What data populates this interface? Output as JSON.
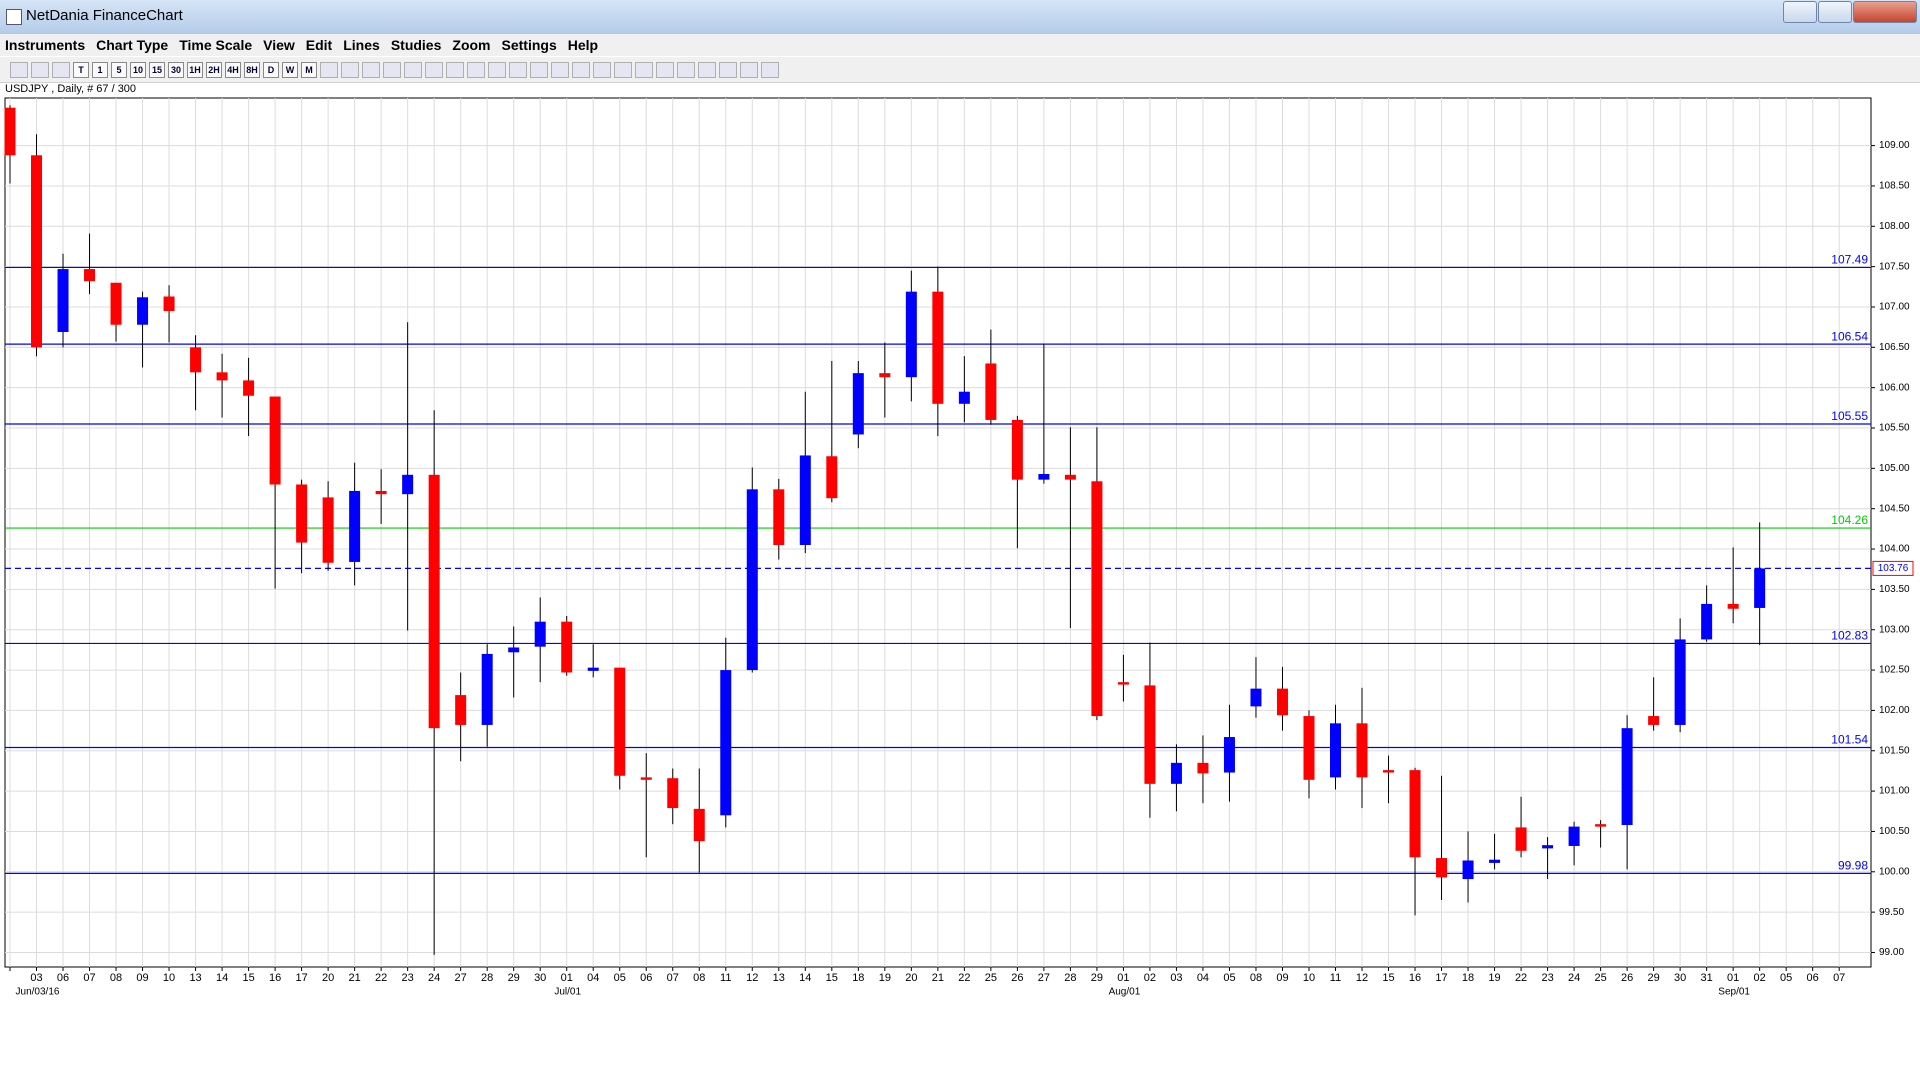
{
  "window": {
    "title": "NetDania FinanceChart",
    "menu": [
      "Instruments",
      "Chart Type",
      "Time Scale",
      "View",
      "Edit",
      "Lines",
      "Studies",
      "Zoom",
      "Settings",
      "Help"
    ]
  },
  "toolbar": {
    "buttons": [
      "T",
      "1",
      "5",
      "10",
      "15",
      "30",
      "1H",
      "2H",
      "4H",
      "8H",
      "D",
      "W",
      "M"
    ]
  },
  "chart_data": {
    "type": "candlestick",
    "title": "USDJPY , Daily, # 67 / 300",
    "up_color": "#0000ff",
    "down_color": "#ff0000",
    "grid": true,
    "categories": [
      null,
      "03",
      "06",
      "07",
      "08",
      "09",
      "10",
      "13",
      "14",
      "15",
      "16",
      "17",
      "20",
      "21",
      "22",
      "23",
      "24",
      "27",
      "28",
      "29",
      "30",
      "01",
      "04",
      "05",
      "06",
      "07",
      "08",
      "11",
      "12",
      "13",
      "14",
      "15",
      "18",
      "19",
      "20",
      "21",
      "22",
      "25",
      "26",
      "27",
      "28",
      "29",
      "01",
      "02",
      "03",
      "04",
      "05",
      "08",
      "09",
      "10",
      "11",
      "12",
      "15",
      "16",
      "17",
      "18",
      "19",
      "22",
      "23",
      "24",
      "25",
      "26",
      "29",
      "30",
      "31",
      "01",
      "02",
      "05",
      "06",
      "07"
    ],
    "period_labels": [
      null,
      "Jun/03/16",
      null,
      null,
      null,
      null,
      null,
      null,
      null,
      null,
      null,
      null,
      null,
      null,
      null,
      null,
      null,
      null,
      null,
      null,
      null,
      "Jul/01",
      null,
      null,
      null,
      null,
      null,
      null,
      null,
      null,
      null,
      null,
      null,
      null,
      null,
      null,
      null,
      null,
      null,
      null,
      null,
      null,
      "Aug/01",
      null,
      null,
      null,
      null,
      null,
      null,
      null,
      null,
      null,
      null,
      null,
      null,
      null,
      null,
      null,
      null,
      null,
      null,
      null,
      null,
      null,
      null,
      "Sep/01",
      null,
      null,
      null,
      null
    ],
    "open": [
      109.47,
      108.88,
      106.69,
      107.47,
      107.3,
      106.78,
      107.13,
      106.5,
      106.19,
      106.09,
      105.89,
      104.8,
      104.64,
      103.84,
      104.72,
      104.68,
      104.92,
      102.19,
      101.82,
      102.72,
      102.79,
      103.1,
      102.49,
      102.53,
      101.17,
      101.16,
      100.78,
      100.7,
      102.5,
      104.74,
      104.05,
      105.15,
      105.42,
      106.18,
      106.13,
      107.19,
      105.8,
      106.3,
      105.6,
      104.86,
      104.92,
      104.84,
      102.35,
      102.31,
      101.09,
      101.35,
      101.23,
      102.05,
      102.27,
      101.93,
      101.17,
      101.84,
      101.26,
      101.26,
      100.17,
      99.91,
      100.11,
      100.55,
      100.29,
      100.32,
      100.59,
      100.58,
      101.93,
      101.82,
      102.88,
      103.32,
      103.27,
      null,
      null,
      null
    ],
    "high": [
      109.5,
      109.14,
      107.66,
      107.91,
      107.3,
      107.19,
      107.27,
      106.65,
      106.42,
      106.37,
      105.89,
      104.86,
      104.84,
      105.07,
      104.99,
      106.81,
      105.72,
      102.47,
      102.82,
      103.04,
      103.4,
      103.17,
      102.82,
      102.53,
      101.47,
      101.28,
      101.28,
      102.9,
      105.01,
      104.87,
      105.95,
      106.33,
      106.33,
      106.56,
      107.45,
      107.5,
      106.39,
      106.72,
      105.65,
      106.54,
      105.51,
      105.51,
      102.69,
      102.84,
      101.58,
      101.69,
      102.07,
      102.66,
      102.54,
      102.0,
      102.07,
      102.28,
      101.44,
      101.29,
      101.19,
      100.5,
      100.47,
      100.93,
      100.43,
      100.62,
      100.64,
      101.94,
      102.41,
      103.14,
      103.55,
      104.02,
      104.33,
      null,
      null,
      null
    ],
    "low": [
      108.53,
      106.39,
      106.5,
      107.16,
      106.57,
      106.25,
      106.56,
      105.72,
      105.63,
      105.4,
      103.51,
      103.7,
      103.73,
      103.55,
      104.31,
      102.99,
      98.97,
      101.37,
      101.55,
      102.16,
      102.35,
      102.43,
      102.41,
      101.02,
      100.18,
      100.59,
      99.99,
      100.55,
      102.47,
      103.87,
      103.95,
      104.58,
      105.25,
      105.63,
      105.83,
      105.4,
      105.57,
      105.54,
      104.01,
      104.81,
      103.02,
      101.88,
      102.11,
      100.67,
      100.75,
      100.85,
      100.87,
      101.91,
      101.75,
      100.91,
      101.02,
      100.79,
      100.85,
      99.46,
      99.65,
      99.62,
      100.03,
      100.18,
      99.91,
      100.08,
      100.3,
      100.03,
      101.75,
      101.73,
      102.85,
      103.08,
      102.81,
      null,
      null,
      null
    ],
    "close": [
      108.88,
      106.5,
      107.47,
      107.32,
      106.78,
      107.12,
      106.95,
      106.19,
      106.09,
      105.9,
      104.8,
      104.08,
      103.83,
      104.72,
      104.68,
      104.92,
      101.78,
      101.82,
      102.7,
      102.78,
      103.1,
      102.47,
      102.53,
      101.19,
      101.14,
      100.79,
      100.38,
      102.5,
      104.74,
      104.05,
      105.16,
      104.63,
      106.18,
      106.13,
      107.19,
      105.8,
      105.95,
      105.6,
      104.86,
      104.93,
      104.86,
      101.93,
      102.32,
      101.09,
      101.35,
      101.22,
      101.67,
      102.27,
      101.94,
      101.14,
      101.84,
      101.17,
      101.23,
      100.18,
      99.93,
      100.14,
      100.15,
      100.26,
      100.33,
      100.56,
      100.56,
      101.78,
      101.82,
      102.88,
      103.32,
      103.26,
      103.76,
      null,
      null,
      null
    ],
    "ylim": [
      98.82,
      109.59
    ],
    "yticks": [
      {
        "value": 99,
        "label": "99.00"
      },
      {
        "value": 99.5,
        "label": "99.50"
      },
      {
        "value": 100,
        "label": "100.00"
      },
      {
        "value": 100.5,
        "label": "100.50"
      },
      {
        "value": 101,
        "label": "101.00"
      },
      {
        "value": 101.5,
        "label": "101.50"
      },
      {
        "value": 102,
        "label": "102.00"
      },
      {
        "value": 102.5,
        "label": "102.50"
      },
      {
        "value": 103,
        "label": "103.00"
      },
      {
        "value": 103.5,
        "label": "103.50"
      },
      {
        "value": 104,
        "label": "104.00"
      },
      {
        "value": 104.5,
        "label": "104.50"
      },
      {
        "value": 105,
        "label": "105.00"
      },
      {
        "value": 105.5,
        "label": "105.50"
      },
      {
        "value": 106,
        "label": "106.00"
      },
      {
        "value": 106.5,
        "label": "106.50"
      },
      {
        "value": 107,
        "label": "107.00"
      },
      {
        "value": 107.5,
        "label": "107.50"
      },
      {
        "value": 108,
        "label": "108.00"
      },
      {
        "value": 108.5,
        "label": "108.50"
      },
      {
        "value": 109,
        "label": "109.00"
      }
    ],
    "hlines": [
      {
        "value": 107.49,
        "color": "#0000ff"
      },
      {
        "value": 106.54,
        "color": "#0000ff"
      },
      {
        "value": 105.55,
        "color": "#0000ff"
      },
      {
        "value": 104.26,
        "color": "#00cc00"
      },
      {
        "value": 103.76,
        "color": "#0000ff",
        "dashed": true
      },
      {
        "value": 102.83,
        "color": "#0000ff"
      },
      {
        "value": 101.54,
        "color": "#0000ff"
      },
      {
        "value": 99.98,
        "color": "#0000ff"
      }
    ]
  }
}
